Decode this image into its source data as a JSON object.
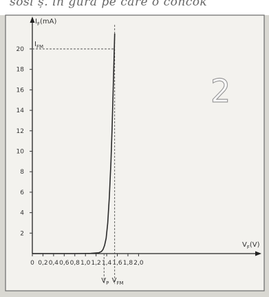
{
  "header": {
    "text": "sosi ș. in gura pe care o concok"
  },
  "figure_number": "2",
  "chart_data": {
    "type": "line",
    "title": "",
    "xlabel": "V_F (V)",
    "ylabel": "I_F (mA)",
    "xlim": [
      0,
      2.1
    ],
    "ylim": [
      0,
      22
    ],
    "x_ticks": [
      0,
      0.2,
      0.4,
      0.6,
      0.8,
      1.0,
      1.2,
      1.4,
      1.6,
      1.8,
      2.0
    ],
    "x_tick_labels": [
      "0",
      "0,2",
      "0,4",
      "0,6",
      "0,8",
      "1,0",
      "1,2",
      "1,4",
      "1,6",
      "1,8",
      "2,0"
    ],
    "y_ticks": [
      2,
      4,
      6,
      8,
      10,
      12,
      14,
      16,
      18,
      20
    ],
    "y_tick_labels": [
      "2",
      "4",
      "6",
      "8",
      "10",
      "12",
      "14",
      "16",
      "18",
      "20"
    ],
    "grid": false,
    "series": [
      {
        "x": [
          0,
          0.8,
          1.1,
          1.25,
          1.3,
          1.33,
          1.36,
          1.39,
          1.42,
          1.45,
          1.48,
          1.5,
          1.52,
          1.535,
          1.55
        ],
        "y": [
          0,
          0,
          0.02,
          0.08,
          0.2,
          0.4,
          0.8,
          1.5,
          3.0,
          5.5,
          9.0,
          12.0,
          15.5,
          18.5,
          21.5
        ]
      }
    ],
    "annotations": {
      "ifm_label": "I_FM",
      "ifm_value": 20,
      "vp_label": "V_P",
      "vp_value": 1.35,
      "vfm_label": "V_FM",
      "vfm_value": 1.55
    }
  }
}
